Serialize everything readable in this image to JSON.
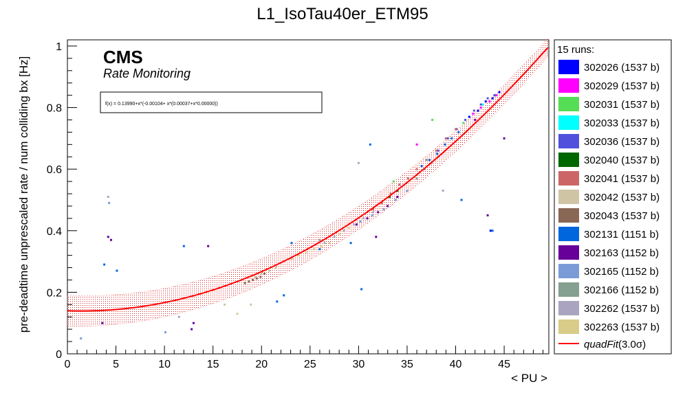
{
  "chart_data": {
    "type": "scatter",
    "title": "L1_IsoTau40er_ETM95",
    "xlabel": "< PU >",
    "ylabel": "pre-deadtime unprescaled rate / num colliding bx [Hz]",
    "xlim": [
      0,
      49.6
    ],
    "ylim": [
      0,
      1.02
    ],
    "x_ticks": [
      "0",
      "5",
      "10",
      "15",
      "20",
      "25",
      "30",
      "35",
      "40",
      "45"
    ],
    "y_ticks": [
      "0",
      "0.2",
      "0.4",
      "0.6",
      "0.8",
      "1"
    ],
    "grid": false,
    "legend_position": "right",
    "legend_header": "15 runs:",
    "cms_label": "CMS",
    "cms_sublabel": "Rate Monitoring",
    "fit_text": "f(x) = 0.13990+x*(-0.00104+ x*(0.00037+x*0.00000))",
    "fit": {
      "label": "quadFit(3.0σ)",
      "label_main": "quadFit",
      "label_args": "(3.0σ)",
      "c0": 0.1399,
      "c1": -0.00104,
      "c2": 0.00037,
      "band_halfwidth_low_pu": 0.05,
      "band_halfwidth_high_pu": 0.03,
      "color": "#ff0000"
    },
    "series": [
      {
        "name": "302026 (1537 b)",
        "color": "#0000ff",
        "x": [
          41.4,
          42.3,
          43.1,
          43.8,
          44.5,
          43.6
        ],
        "y": [
          0.77,
          0.79,
          0.82,
          0.83,
          0.85,
          0.4
        ]
      },
      {
        "name": "302029 (1537 b)",
        "color": "#ff00ff",
        "x": [
          41.8,
          42.6,
          43.5,
          44.2,
          36.0
        ],
        "y": [
          0.78,
          0.8,
          0.82,
          0.84,
          0.68
        ]
      },
      {
        "name": "302031 (1537 b)",
        "color": "#55dd55",
        "x": [
          37.6,
          40.8,
          33.6
        ],
        "y": [
          0.76,
          0.75,
          0.56
        ]
      },
      {
        "name": "302033 (1537 b)",
        "color": "#00ffff",
        "x": [
          42.8,
          44.0
        ],
        "y": [
          0.81,
          0.84
        ]
      },
      {
        "name": "302036 (1537 b)",
        "color": "#5050dd",
        "x": [
          38.2,
          39.2,
          40.1,
          41.0,
          41.9,
          42.6,
          43.3,
          44.0
        ],
        "y": [
          0.66,
          0.7,
          0.73,
          0.76,
          0.79,
          0.81,
          0.83,
          0.84
        ]
      },
      {
        "name": "302040 (1537 b)",
        "color": "#006600",
        "x": [
          33.2,
          34.0
        ],
        "y": [
          0.51,
          0.53
        ]
      },
      {
        "name": "302041 (1537 b)",
        "color": "#cc6666",
        "x": [
          31.5,
          32.4,
          33.3,
          34.2,
          35.1,
          36.0,
          37.0,
          38.0,
          39.0,
          40.0
        ],
        "y": [
          0.47,
          0.49,
          0.52,
          0.55,
          0.57,
          0.6,
          0.63,
          0.66,
          0.7,
          0.73
        ]
      },
      {
        "name": "302042 (1537 b)",
        "color": "#cfc4a4",
        "x": [
          19.3,
          20.0,
          20.8,
          21.5,
          16.2,
          18.9,
          22.3,
          23.2
        ],
        "y": [
          0.25,
          0.26,
          0.27,
          0.28,
          0.16,
          0.16,
          0.3,
          0.31
        ]
      },
      {
        "name": "302043 (1537 b)",
        "color": "#8a6655",
        "x": [
          18.3,
          18.7,
          19.1,
          19.5,
          19.9,
          20.3
        ],
        "y": [
          0.23,
          0.235,
          0.24,
          0.245,
          0.25,
          0.26
        ]
      },
      {
        "name": "302131 (1151 b)",
        "color": "#0066dd",
        "x": [
          36.5,
          37.3,
          38.1,
          38.9,
          39.6,
          40.3,
          31.2,
          26.0,
          23.1,
          5.1,
          3.8,
          12.0,
          29.2,
          30.3,
          22.3,
          21.6,
          43.8,
          40.6
        ],
        "y": [
          0.61,
          0.63,
          0.65,
          0.68,
          0.7,
          0.72,
          0.68,
          0.34,
          0.36,
          0.27,
          0.29,
          0.35,
          0.36,
          0.21,
          0.19,
          0.17,
          0.4,
          0.5
        ]
      },
      {
        "name": "302163 (1152 b)",
        "color": "#660099",
        "x": [
          29.8,
          30.9,
          32.0,
          33.0,
          34.0,
          4.2,
          4.5,
          3.6,
          14.5,
          13.0,
          12.8,
          31.8,
          43.3,
          45.0,
          42.0
        ],
        "y": [
          0.42,
          0.44,
          0.46,
          0.48,
          0.51,
          0.38,
          0.37,
          0.1,
          0.35,
          0.1,
          0.08,
          0.38,
          0.45,
          0.7,
          0.76
        ]
      },
      {
        "name": "302165 (1152 b)",
        "color": "#7b9bd8",
        "x": [
          30.2,
          31.4,
          32.6,
          33.8,
          35.0,
          4.3,
          1.4,
          10.1
        ],
        "y": [
          0.43,
          0.45,
          0.47,
          0.5,
          0.53,
          0.49,
          0.05,
          0.07
        ]
      },
      {
        "name": "302166 (1152 b)",
        "color": "#85a090",
        "x": [
          36.0,
          36.8,
          37.5,
          38.2,
          26.0,
          37.0
        ],
        "y": [
          0.57,
          0.6,
          0.62,
          0.64,
          0.37,
          0.63
        ]
      },
      {
        "name": "302262 (1537 b)",
        "color": "#aaa4c0",
        "x": [
          26.5,
          27.5,
          28.5,
          29.5,
          30.5,
          31.5,
          4.2,
          30.0,
          38.7,
          11.5
        ],
        "y": [
          0.36,
          0.38,
          0.4,
          0.42,
          0.44,
          0.46,
          0.51,
          0.62,
          0.53,
          0.12
        ]
      },
      {
        "name": "302263 (1537 b)",
        "color": "#d8cc88",
        "x": [
          23.0,
          23.8,
          24.6,
          25.4,
          26.2,
          27.0,
          28.0,
          29.0,
          17.5
        ],
        "y": [
          0.31,
          0.32,
          0.33,
          0.34,
          0.35,
          0.36,
          0.39,
          0.41,
          0.13
        ]
      }
    ]
  }
}
